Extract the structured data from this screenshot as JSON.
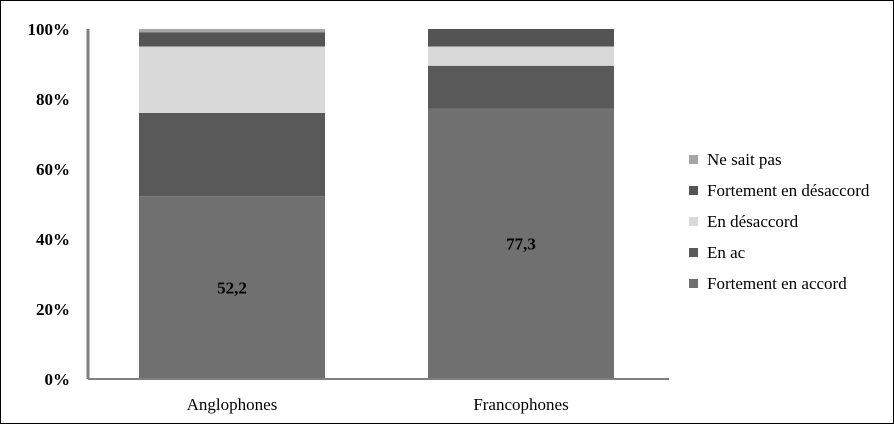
{
  "chart_data": {
    "type": "bar",
    "stacked": true,
    "title": "",
    "xlabel": "",
    "ylabel": "",
    "ylim": [
      0,
      100
    ],
    "yticks": [
      "0%",
      "20%",
      "40%",
      "60%",
      "80%",
      "100%"
    ],
    "categories": [
      "Anglophones",
      "Francophones"
    ],
    "series": [
      {
        "name": "Fortement en accord",
        "values": [
          52.2,
          77.3
        ],
        "color": "#707070"
      },
      {
        "name": "En ac",
        "values": [
          23.8,
          12.2
        ],
        "color": "#595959"
      },
      {
        "name": "En désaccord",
        "values": [
          19.0,
          5.5
        ],
        "color": "#d9d9d9"
      },
      {
        "name": "Fortement en désaccord",
        "values": [
          4.0,
          5.0
        ],
        "color": "#545454"
      },
      {
        "name": "Ne sait pas",
        "values": [
          1.0,
          0.0
        ],
        "color": "#a6a6a6"
      }
    ],
    "data_labels": [
      {
        "category": "Anglophones",
        "series": "Fortement en accord",
        "text": "52,2"
      },
      {
        "category": "Francophones",
        "series": "Fortement en accord",
        "text": "77,3"
      }
    ],
    "legend_order": [
      "Ne sait pas",
      "Fortement en désaccord",
      "En désaccord",
      "En ac",
      "Fortement en accord"
    ],
    "legend_position": "right",
    "grid": false
  }
}
